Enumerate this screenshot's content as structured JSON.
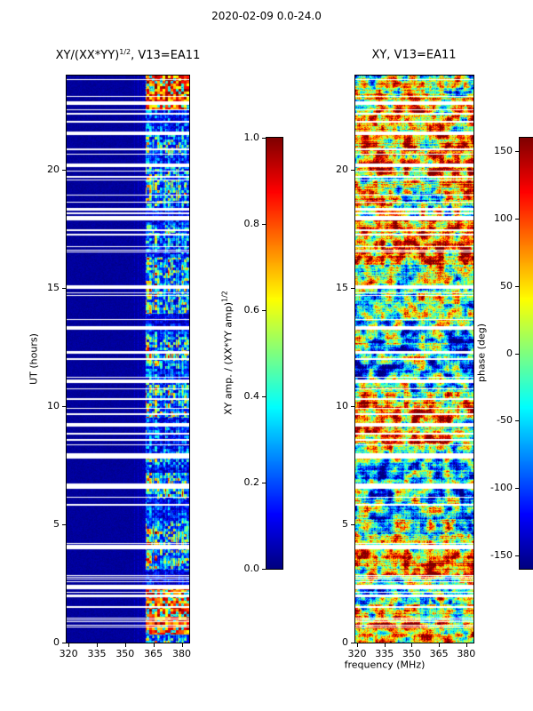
{
  "figure": {
    "title": "2020-02-09 0.0-24.0",
    "background": "#ffffff",
    "text_color": "#000000"
  },
  "chart_data": {
    "type": "heatmap",
    "colormap": "jet",
    "xlabel": "frequency (MHz)",
    "panels": [
      {
        "id": "amplitude",
        "title_base": "XY/(XX*YY)",
        "title_sup": "1/2",
        "title_rest": ", V13=EA11",
        "x": {
          "ticks": [
            320,
            335,
            350,
            365,
            380
          ],
          "range": [
            319,
            384
          ],
          "unit": "MHz"
        },
        "y": {
          "label": "UT (hours)",
          "ticks": [
            0,
            5,
            10,
            15,
            20
          ],
          "range": [
            0,
            24
          ]
        },
        "value_range": [
          0,
          1
        ],
        "features": {
          "background_level": 0.03,
          "weak_band_mhz": [
            355,
            361
          ],
          "active_band_mhz": [
            361,
            384
          ],
          "strong_bursts_ut": [
            [
              0.35,
              2.3
            ],
            [
              22.55,
              24
            ]
          ],
          "moderate_activity_ut": [
            [
              3.1,
              4.8
            ],
            [
              6.1,
              7.2
            ],
            [
              9.5,
              10.9
            ],
            [
              13.9,
              16.3
            ],
            [
              18.6,
              19.4
            ]
          ],
          "content": "mostly ~0.03 cross-amplitude (dark blue); RFI-like active band 361-384 MHz with blue/cyan/yellow speckle; strong red/orange blocks near 0.3-2.3 UT and 22.6-24 UT"
        }
      },
      {
        "id": "phase",
        "title_base": "XY, V13=EA11",
        "title_sup": "",
        "title_rest": "",
        "x": {
          "ticks": [
            320,
            335,
            350,
            365,
            380
          ],
          "range": [
            319,
            384
          ],
          "unit": "MHz"
        },
        "y": {
          "label": "",
          "ticks": [
            0,
            5,
            10,
            15,
            20
          ],
          "range": [
            0,
            24
          ]
        },
        "value_range": [
          -180,
          180
        ],
        "features": {
          "warm_bands_ut": [
            [
              0,
              1.6
            ],
            [
              2.8,
              4.6
            ],
            [
              8.4,
              10.2
            ],
            [
              16,
              18
            ],
            [
              19.8,
              23.2
            ]
          ],
          "cool_bands_ut": [
            [
              5.2,
              7.6
            ],
            [
              10.8,
              13.2
            ]
          ],
          "content": "random cross-phase patchwork spanning full -180..180 deg across the whole band, with time intervals dominated by warm (orange/red) or cool (blue/cyan) phases"
        }
      }
    ],
    "colorbars": [
      {
        "id": "amp",
        "label_base": "XY amp. / (XX*YY amp)",
        "label_sup": "1/2",
        "ticks": [
          "0.0",
          "0.2",
          "0.4",
          "0.6",
          "0.8",
          "1.0"
        ],
        "tick_values": [
          0,
          0.2,
          0.4,
          0.6,
          0.8,
          1
        ],
        "range": [
          0,
          1
        ]
      },
      {
        "id": "phase",
        "label_base": "phase (deg)",
        "label_sup": "",
        "ticks": [
          "-150",
          "-100",
          "-50",
          "0",
          "50",
          "100",
          "150"
        ],
        "tick_values": [
          -150,
          -100,
          -50,
          0,
          50,
          100,
          150
        ],
        "range": [
          -160,
          160
        ]
      }
    ],
    "missing_data": {
      "appearance": "horizontal white gaps (flagged times), common to both panels",
      "major_gaps_ut": [
        2.35,
        4.05,
        6.6,
        7.9,
        9.2,
        11.05,
        13.3,
        15.05,
        17.95,
        20.2,
        21.55,
        22.85
      ],
      "minor_gap_count": 60,
      "seed": 20200209
    }
  }
}
